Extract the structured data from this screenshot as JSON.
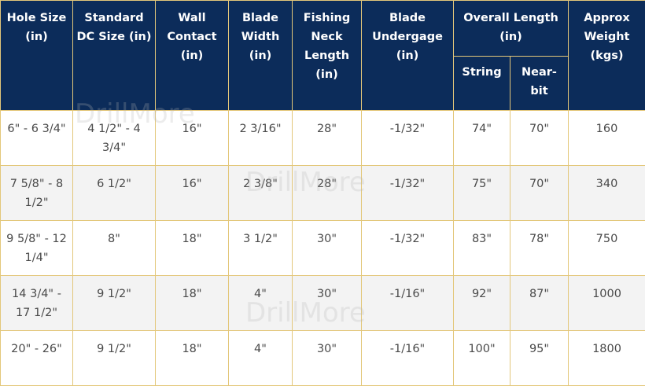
{
  "headers": {
    "hole_size": "Hole Size (in)",
    "dc_size": "Standard DC Size (in)",
    "wall_contact": "Wall Contact (in)",
    "blade_width": "Blade Width (in)",
    "fishing_neck": "Fishing Neck Length (in)",
    "undergage": "Blade Undergage (in)",
    "overall_length": "Overall Length (in)",
    "string": "String",
    "near_bit": "Near-bit",
    "weight": "Approx Weight (kgs)"
  },
  "rows": [
    [
      "6\" - 6 3/4\"",
      "4 1/2\" - 4 3/4\"",
      "16\"",
      "2 3/16\"",
      "28\"",
      "-1/32\"",
      "74\"",
      "70\"",
      "160"
    ],
    [
      "7 5/8\" - 8 1/2\"",
      "6 1/2\"",
      "16\"",
      "2 3/8\"",
      "28\"",
      "-1/32\"",
      "75\"",
      "70\"",
      "340"
    ],
    [
      "9 5/8\" - 12 1/4\"",
      "8\"",
      "18\"",
      "3 1/2\"",
      "30\"",
      "-1/32\"",
      "83\"",
      "78\"",
      "750"
    ],
    [
      "14 3/4\" - 17 1/2\"",
      "9 1/2\"",
      "18\"",
      "4\"",
      "30\"",
      "-1/16\"",
      "92\"",
      "87\"",
      "1000"
    ],
    [
      "20\" - 26\"",
      "9 1/2\"",
      "18\"",
      "4\"",
      "30\"",
      "-1/16\"",
      "100\"",
      "95\"",
      "1800"
    ]
  ],
  "watermark": "DrillMore",
  "colors": {
    "header_bg": "#0c2c5a",
    "border": "#e3c77a",
    "alt_row": "#f3f3f3"
  }
}
